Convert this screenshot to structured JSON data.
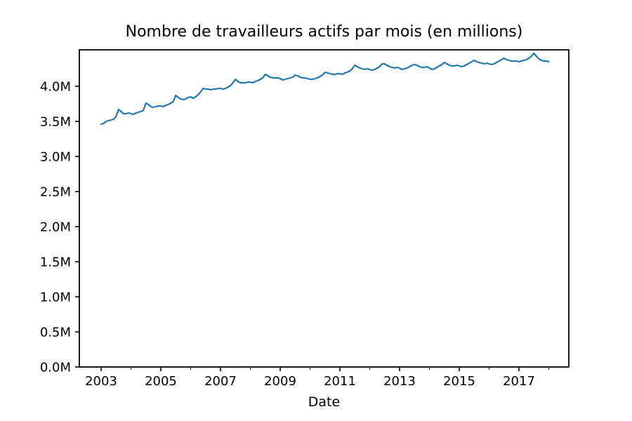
{
  "figure": {
    "background_color": "#ffffff",
    "axes_border_color": "#000000"
  },
  "chart_data": {
    "type": "line",
    "title": "Nombre de travailleurs actifs par mois (en millions)",
    "xlabel": "Date",
    "ylabel": "",
    "grid": false,
    "legend": null,
    "xlim": [
      2002.27,
      2018.67
    ],
    "ylim": [
      0,
      4.52
    ],
    "x_ticks_major": {
      "values": [
        2003,
        2005,
        2007,
        2009,
        2011,
        2013,
        2015,
        2017
      ],
      "labels": [
        "2003",
        "2005",
        "2007",
        "2009",
        "2011",
        "2013",
        "2015",
        "2017"
      ]
    },
    "x_ticks_minor": {
      "values": [
        2004,
        2006,
        2008,
        2010,
        2012,
        2014,
        2016,
        2018
      ]
    },
    "y_ticks": {
      "values": [
        0,
        0.5,
        1.0,
        1.5,
        2.0,
        2.5,
        3.0,
        3.5,
        4.0
      ],
      "labels": [
        "0.0M",
        "0.5M",
        "1.0M",
        "1.5M",
        "2.0M",
        "2.5M",
        "3.0M",
        "3.5M",
        "4.0M"
      ]
    },
    "series": [
      {
        "name": "travailleurs-actifs",
        "color": "#1f77b4",
        "unit": "millions",
        "start_year": 2003,
        "start_month": 1,
        "monthly_values": [
          3.46,
          3.47,
          3.5,
          3.51,
          3.52,
          3.53,
          3.57,
          3.67,
          3.64,
          3.61,
          3.61,
          3.62,
          3.61,
          3.6,
          3.62,
          3.63,
          3.64,
          3.66,
          3.76,
          3.74,
          3.71,
          3.7,
          3.71,
          3.72,
          3.72,
          3.71,
          3.73,
          3.74,
          3.76,
          3.78,
          3.87,
          3.84,
          3.82,
          3.81,
          3.82,
          3.84,
          3.85,
          3.83,
          3.85,
          3.88,
          3.92,
          3.97,
          3.96,
          3.96,
          3.95,
          3.96,
          3.96,
          3.97,
          3.97,
          3.96,
          3.97,
          3.99,
          4.01,
          4.05,
          4.1,
          4.07,
          4.05,
          4.05,
          4.05,
          4.06,
          4.06,
          4.05,
          4.07,
          4.08,
          4.1,
          4.12,
          4.17,
          4.15,
          4.13,
          4.12,
          4.12,
          4.12,
          4.11,
          4.09,
          4.1,
          4.11,
          4.12,
          4.13,
          4.16,
          4.15,
          4.13,
          4.12,
          4.12,
          4.11,
          4.1,
          4.1,
          4.11,
          4.12,
          4.14,
          4.16,
          4.2,
          4.19,
          4.18,
          4.17,
          4.17,
          4.18,
          4.18,
          4.17,
          4.19,
          4.2,
          4.22,
          4.25,
          4.3,
          4.28,
          4.26,
          4.25,
          4.24,
          4.25,
          4.24,
          4.23,
          4.24,
          4.26,
          4.28,
          4.32,
          4.32,
          4.3,
          4.28,
          4.27,
          4.26,
          4.27,
          4.26,
          4.24,
          4.25,
          4.26,
          4.28,
          4.3,
          4.31,
          4.3,
          4.28,
          4.27,
          4.27,
          4.28,
          4.26,
          4.24,
          4.25,
          4.27,
          4.29,
          4.31,
          4.34,
          4.32,
          4.3,
          4.29,
          4.29,
          4.3,
          4.29,
          4.28,
          4.29,
          4.31,
          4.33,
          4.35,
          4.37,
          4.35,
          4.34,
          4.33,
          4.32,
          4.33,
          4.32,
          4.31,
          4.32,
          4.34,
          4.36,
          4.38,
          4.4,
          4.38,
          4.37,
          4.36,
          4.36,
          4.36,
          4.35,
          4.36,
          4.37,
          4.38,
          4.4,
          4.43,
          4.47,
          4.43,
          4.39,
          4.37,
          4.36,
          4.36,
          4.35
        ]
      }
    ]
  }
}
